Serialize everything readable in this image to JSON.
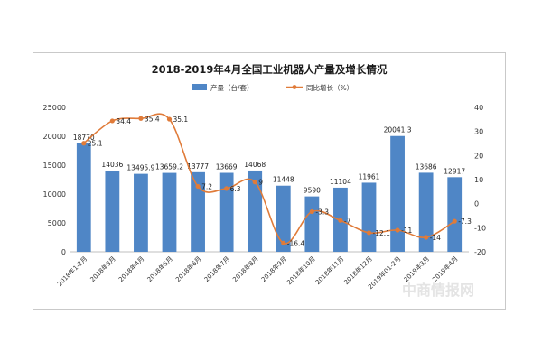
{
  "chart_data": {
    "type": "bar",
    "title": "2018-2019年4月全国工业机器人产量及增长情况",
    "categories": [
      "2018年1-2月",
      "2018年3月",
      "2018年4月",
      "2018年5月",
      "2018年6月",
      "2018年7月",
      "2018年8月",
      "2018年9月",
      "2018年10月",
      "2018年11月",
      "2018年12月",
      "2019年01-2月",
      "2019年3月",
      "2019年4月"
    ],
    "series": [
      {
        "name": "产量（台/套）",
        "type": "bar",
        "axis": "left",
        "color": "#4f86c6",
        "values": [
          18770,
          14036,
          13495.9,
          13659.2,
          13777,
          13669,
          14068,
          11448,
          9590,
          11104,
          11961,
          20041.3,
          13686,
          12917
        ]
      },
      {
        "name": "同比增长（%）",
        "type": "line",
        "axis": "right",
        "color": "#e07b39",
        "values": [
          25.1,
          34.4,
          35.4,
          35.1,
          7.2,
          6.3,
          9,
          -16.4,
          -3.3,
          -7,
          -12.1,
          -11,
          -14,
          -7.3
        ]
      }
    ],
    "bar_labels": [
      "18770",
      "14036",
      "13495.9",
      "13659.2",
      "13777",
      "13669",
      "14068",
      "11448",
      "9590",
      "11104",
      "11961",
      "20041.3",
      "13686",
      "12917"
    ],
    "line_labels": [
      "25.1",
      "34.4",
      "35.4",
      "35.1",
      "7.2",
      "6.3",
      "9",
      "-16.4",
      "-3.3",
      "-7",
      "-12.1",
      "-11",
      "-14",
      "-7.3"
    ],
    "y_left": {
      "min": 0,
      "max": 25000,
      "ticks": [
        "0",
        "5000",
        "10000",
        "15000",
        "20000",
        "25000"
      ]
    },
    "y_right": {
      "min": -20,
      "max": 40,
      "ticks": [
        "-20",
        "-10",
        "0",
        "10",
        "20",
        "30",
        "40"
      ]
    },
    "legend_position": "top-center",
    "grid": false
  },
  "watermark": "中商情报网"
}
